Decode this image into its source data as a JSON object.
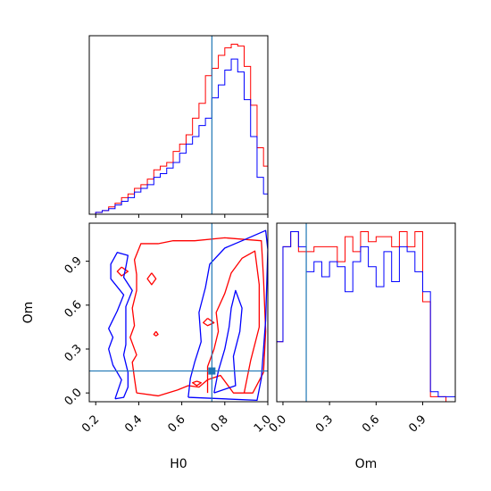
{
  "chart_data": {
    "type": "corner",
    "parameters": [
      "H0",
      "Om"
    ],
    "truths": {
      "H0": 0.74,
      "Om": 0.15
    },
    "colors": {
      "red": "#ff0000",
      "blue": "#0000ff",
      "truth": "#1f77b4"
    },
    "grid": false,
    "panels": [
      {
        "id": "hist-H0",
        "type": "histogram",
        "xlim": [
          0.17,
          1.0
        ],
        "xticks": [
          0.2,
          0.4,
          0.6,
          0.8,
          1.0
        ],
        "bin_edges": [
          0.17,
          0.2,
          0.23,
          0.26,
          0.29,
          0.32,
          0.35,
          0.38,
          0.41,
          0.44,
          0.47,
          0.5,
          0.53,
          0.56,
          0.59,
          0.62,
          0.65,
          0.68,
          0.71,
          0.74,
          0.77,
          0.8,
          0.83,
          0.86,
          0.89,
          0.92,
          0.95,
          0.98,
          1.0
        ],
        "series": [
          {
            "name": "red",
            "values": [
              0,
              1,
              2,
              4,
              6,
              9,
              11,
              14,
              16,
              19,
              24,
              26,
              28,
              34,
              38,
              43,
              52,
              60,
              75,
              79,
              86,
              90,
              92,
              91,
              80,
              59,
              36,
              26
            ]
          },
          {
            "name": "blue",
            "values": [
              0,
              1,
              2,
              3,
              5,
              7,
              9,
              12,
              14,
              16,
              20,
              22,
              25,
              28,
              33,
              38,
              42,
              48,
              52,
              63,
              70,
              78,
              84,
              77,
              62,
              42,
              20,
              11
            ]
          }
        ]
      },
      {
        "id": "hist-Om",
        "type": "histogram",
        "xlim": [
          -0.04,
          1.11
        ],
        "xticks": [
          0.0,
          0.3,
          0.6,
          0.9
        ],
        "bin_edges": [
          -0.04,
          0.0,
          0.05,
          0.1,
          0.15,
          0.2,
          0.25,
          0.3,
          0.35,
          0.4,
          0.45,
          0.5,
          0.55,
          0.6,
          0.65,
          0.7,
          0.75,
          0.8,
          0.85,
          0.9,
          0.95,
          1.0,
          1.05,
          1.11
        ],
        "series": [
          {
            "name": "red",
            "values": [
              12,
              31,
              34,
              30,
              30,
              31,
              31,
              31,
              28,
              33,
              30,
              34,
              32,
              33,
              33,
              31,
              34,
              31,
              34,
              20,
              1,
              1,
              0
            ]
          },
          {
            "name": "blue",
            "values": [
              12,
              31,
              34,
              31,
              26,
              28,
              25,
              28,
              27,
              22,
              28,
              31,
              27,
              23,
              30,
              24,
              31,
              30,
              26,
              22,
              2,
              1,
              1
            ]
          }
        ]
      },
      {
        "id": "contour-H0-Om",
        "type": "contour",
        "xlim": [
          0.17,
          1.0
        ],
        "ylim": [
          -0.06,
          1.16
        ],
        "xticks": [
          0.2,
          0.4,
          0.6,
          0.8,
          1.0
        ],
        "yticks": [
          0.0,
          0.3,
          0.6,
          0.9
        ],
        "contours": [
          {
            "name": "red",
            "level": "outer",
            "points": [
              [
                0.39,
                0.0
              ],
              [
                0.49,
                -0.02
              ],
              [
                0.58,
                0.02
              ],
              [
                0.63,
                0.05
              ],
              [
                0.68,
                0.04
              ],
              [
                0.72,
                0.09
              ],
              [
                0.78,
                0.12
              ],
              [
                0.84,
                0.0
              ],
              [
                0.93,
                0.0
              ],
              [
                0.98,
                0.14
              ],
              [
                0.99,
                0.42
              ],
              [
                0.98,
                0.78
              ],
              [
                0.97,
                1.04
              ],
              [
                0.8,
                1.06
              ],
              [
                0.66,
                1.04
              ],
              [
                0.56,
                1.04
              ],
              [
                0.49,
                1.02
              ],
              [
                0.41,
                1.02
              ],
              [
                0.38,
                0.91
              ],
              [
                0.39,
                0.81
              ],
              [
                0.39,
                0.7
              ],
              [
                0.37,
                0.58
              ],
              [
                0.38,
                0.46
              ],
              [
                0.36,
                0.38
              ],
              [
                0.39,
                0.26
              ],
              [
                0.37,
                0.21
              ],
              [
                0.38,
                0.1
              ],
              [
                0.39,
                0.0
              ]
            ]
          },
          {
            "name": "red",
            "level": "inner",
            "points": [
              [
                0.72,
                0.0
              ],
              [
                0.72,
                0.18
              ],
              [
                0.75,
                0.3
              ],
              [
                0.77,
                0.42
              ],
              [
                0.76,
                0.55
              ],
              [
                0.8,
                0.68
              ],
              [
                0.83,
                0.82
              ],
              [
                0.88,
                0.92
              ],
              [
                0.94,
                0.97
              ],
              [
                0.96,
                0.74
              ],
              [
                0.96,
                0.45
              ],
              [
                0.92,
                0.22
              ],
              [
                0.89,
                0.0
              ]
            ]
          },
          {
            "name": "red",
            "level": "island",
            "points": [
              [
                0.32,
                0.86
              ],
              [
                0.35,
                0.83
              ],
              [
                0.32,
                0.8
              ],
              [
                0.3,
                0.83
              ],
              [
                0.32,
                0.86
              ]
            ]
          },
          {
            "name": "red",
            "level": "island",
            "points": [
              [
                0.46,
                0.82
              ],
              [
                0.48,
                0.78
              ],
              [
                0.46,
                0.74
              ],
              [
                0.44,
                0.78
              ],
              [
                0.46,
                0.82
              ]
            ]
          },
          {
            "name": "red",
            "level": "island",
            "points": [
              [
                0.48,
                0.42
              ],
              [
                0.49,
                0.4
              ],
              [
                0.48,
                0.39
              ],
              [
                0.47,
                0.4
              ],
              [
                0.48,
                0.42
              ]
            ]
          },
          {
            "name": "red",
            "level": "island",
            "points": [
              [
                0.72,
                0.51
              ],
              [
                0.75,
                0.48
              ],
              [
                0.72,
                0.46
              ],
              [
                0.7,
                0.48
              ],
              [
                0.72,
                0.51
              ]
            ]
          },
          {
            "name": "red",
            "level": "island",
            "points": [
              [
                0.67,
                0.08
              ],
              [
                0.69,
                0.07
              ],
              [
                0.67,
                0.05
              ],
              [
                0.65,
                0.07
              ],
              [
                0.67,
                0.08
              ]
            ]
          },
          {
            "name": "blue",
            "level": "outer",
            "points": [
              [
                0.29,
                -0.04
              ],
              [
                0.32,
                0.09
              ],
              [
                0.28,
                0.19
              ],
              [
                0.26,
                0.3
              ],
              [
                0.28,
                0.38
              ],
              [
                0.26,
                0.44
              ],
              [
                0.3,
                0.56
              ],
              [
                0.33,
                0.67
              ],
              [
                0.27,
                0.78
              ],
              [
                0.27,
                0.88
              ],
              [
                0.3,
                0.96
              ],
              [
                0.35,
                0.94
              ],
              [
                0.34,
                0.86
              ],
              [
                0.33,
                0.79
              ],
              [
                0.37,
                0.7
              ],
              [
                0.34,
                0.59
              ],
              [
                0.34,
                0.46
              ],
              [
                0.34,
                0.33
              ],
              [
                0.33,
                0.26
              ],
              [
                0.35,
                0.14
              ],
              [
                0.35,
                0.04
              ],
              [
                0.33,
                -0.03
              ],
              [
                0.29,
                -0.04
              ]
            ]
          },
          {
            "name": "blue",
            "level": "outer",
            "points": [
              [
                0.63,
                -0.03
              ],
              [
                0.64,
                0.1
              ],
              [
                0.66,
                0.21
              ],
              [
                0.69,
                0.35
              ],
              [
                0.68,
                0.55
              ],
              [
                0.71,
                0.72
              ],
              [
                0.73,
                0.88
              ],
              [
                0.8,
                0.99
              ],
              [
                0.88,
                1.04
              ],
              [
                0.99,
                1.11
              ],
              [
                1.0,
                0.98
              ],
              [
                0.99,
                0.5
              ],
              [
                0.97,
                0.1
              ],
              [
                0.95,
                -0.05
              ],
              [
                0.63,
                -0.03
              ]
            ]
          },
          {
            "name": "blue",
            "level": "inner",
            "points": [
              [
                0.75,
                0.0
              ],
              [
                0.77,
                0.15
              ],
              [
                0.8,
                0.3
              ],
              [
                0.82,
                0.45
              ],
              [
                0.83,
                0.58
              ],
              [
                0.85,
                0.7
              ],
              [
                0.88,
                0.58
              ],
              [
                0.87,
                0.42
              ],
              [
                0.84,
                0.25
              ],
              [
                0.85,
                0.05
              ],
              [
                0.75,
                0.0
              ]
            ]
          }
        ]
      }
    ],
    "xlabels": {
      "contour-H0-Om": "H0",
      "hist-Om": "Om"
    },
    "ylabels": {
      "contour-H0-Om": "Om"
    }
  }
}
